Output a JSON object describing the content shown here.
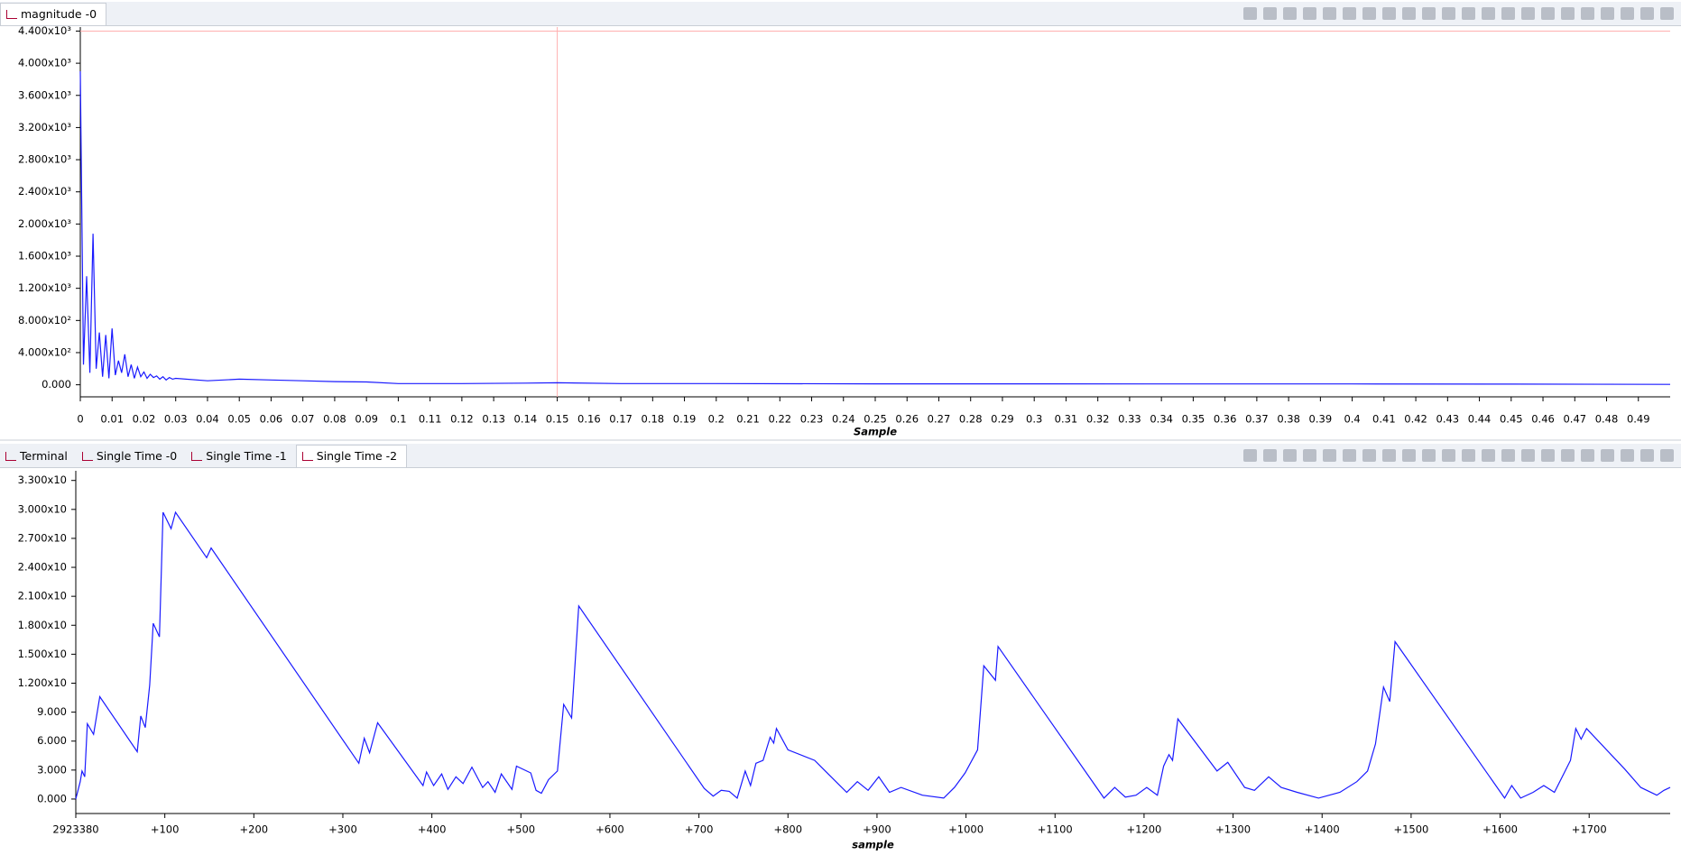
{
  "top_panel": {
    "tabs": [
      "magnitude -0"
    ]
  },
  "bottom_panel": {
    "tabs": [
      "Terminal",
      "Single Time -0",
      "Single Time -1",
      "Single Time -2"
    ]
  },
  "chart_data": [
    {
      "type": "line",
      "x_label": "Sample",
      "xlim": [
        0,
        0.5
      ],
      "ylim": [
        -150,
        4450
      ],
      "cursor_x": 0.15,
      "cursor_y": 4400,
      "xticks": [
        0,
        0.01,
        0.02,
        0.03,
        0.04,
        0.05,
        0.06,
        0.07,
        0.08,
        0.09,
        0.1,
        0.11,
        0.12,
        0.13,
        0.14,
        0.15,
        0.16,
        0.17,
        0.18,
        0.19,
        0.2,
        0.21,
        0.22,
        0.23,
        0.24,
        0.25,
        0.26,
        0.27,
        0.28,
        0.29,
        0.3,
        0.31,
        0.32,
        0.33,
        0.34,
        0.35,
        0.36,
        0.37,
        0.38,
        0.39,
        0.4,
        0.41,
        0.42,
        0.43,
        0.44,
        0.45,
        0.46,
        0.47,
        0.48,
        0.49
      ],
      "yticks": [
        {
          "value": 4400,
          "label": "4.400x10³"
        },
        {
          "value": 4000,
          "label": "4.000x10³"
        },
        {
          "value": 3600,
          "label": "3.600x10³"
        },
        {
          "value": 3200,
          "label": "3.200x10³"
        },
        {
          "value": 2800,
          "label": "2.800x10³"
        },
        {
          "value": 2400,
          "label": "2.400x10³"
        },
        {
          "value": 2000,
          "label": "2.000x10³"
        },
        {
          "value": 1600,
          "label": "1.600x10³"
        },
        {
          "value": 1200,
          "label": "1.200x10³"
        },
        {
          "value": 800,
          "label": "8.000x10²"
        },
        {
          "value": 400,
          "label": "4.000x10²"
        },
        {
          "value": 0,
          "label": "0.000"
        }
      ],
      "x": [
        0,
        0.001,
        0.002,
        0.003,
        0.004,
        0.005,
        0.006,
        0.007,
        0.008,
        0.009,
        0.01,
        0.011,
        0.012,
        0.013,
        0.014,
        0.015,
        0.016,
        0.017,
        0.018,
        0.019,
        0.02,
        0.021,
        0.022,
        0.023,
        0.024,
        0.025,
        0.026,
        0.027,
        0.028,
        0.029,
        0.03,
        0.04,
        0.05,
        0.06,
        0.07,
        0.08,
        0.09,
        0.1,
        0.12,
        0.14,
        0.15,
        0.17,
        0.2,
        0.25,
        0.3,
        0.35,
        0.4,
        0.45,
        0.5
      ],
      "series": [
        {
          "color": "#1a1aff",
          "values": [
            3900,
            250,
            1350,
            150,
            1880,
            200,
            650,
            100,
            620,
            80,
            700,
            120,
            300,
            150,
            380,
            100,
            250,
            80,
            220,
            100,
            160,
            80,
            130,
            90,
            110,
            70,
            100,
            60,
            90,
            70,
            80,
            50,
            70,
            60,
            50,
            40,
            35,
            15,
            15,
            20,
            25,
            15,
            15,
            12,
            12,
            10,
            10,
            8,
            5
          ]
        }
      ]
    },
    {
      "type": "line",
      "x_label": "sample",
      "xlim": [
        2923380,
        2925171
      ],
      "ylim": [
        -1.5,
        34
      ],
      "xticks": [
        2923380,
        {
          "value": 2923480,
          "label": "+100"
        },
        {
          "value": 2923580,
          "label": "+200"
        },
        {
          "value": 2923680,
          "label": "+300"
        },
        {
          "value": 2923780,
          "label": "+400"
        },
        {
          "value": 2923880,
          "label": "+500"
        },
        {
          "value": 2923980,
          "label": "+600"
        },
        {
          "value": 2924080,
          "label": "+700"
        },
        {
          "value": 2924180,
          "label": "+800"
        },
        {
          "value": 2924280,
          "label": "+900"
        },
        {
          "value": 2924380,
          "label": "+1000"
        },
        {
          "value": 2924480,
          "label": "+1100"
        },
        {
          "value": 2924580,
          "label": "+1200"
        },
        {
          "value": 2924680,
          "label": "+1300"
        },
        {
          "value": 2924780,
          "label": "+1400"
        },
        {
          "value": 2924880,
          "label": "+1500"
        },
        {
          "value": 2924980,
          "label": "+1600"
        },
        {
          "value": 2925080,
          "label": "+1700"
        }
      ],
      "yticks": [
        {
          "value": 33,
          "label": "3.300x10"
        },
        {
          "value": 30,
          "label": "3.000x10"
        },
        {
          "value": 27,
          "label": "2.700x10"
        },
        {
          "value": 24,
          "label": "2.400x10"
        },
        {
          "value": 21,
          "label": "2.100x10"
        },
        {
          "value": 18,
          "label": "1.800x10"
        },
        {
          "value": 15,
          "label": "1.500x10"
        },
        {
          "value": 12,
          "label": "1.200x10"
        },
        {
          "value": 9,
          "label": "9.000"
        },
        {
          "value": 6,
          "label": "6.000"
        },
        {
          "value": 3,
          "label": "3.000"
        },
        {
          "value": 0,
          "label": "0.000"
        }
      ],
      "x": [
        2923380,
        2923385,
        2923387,
        2923390,
        2923393,
        2923400,
        2923407,
        2923449,
        2923453,
        2923458,
        2923463,
        2923467,
        2923474,
        2923478,
        2923487,
        2923492,
        2923527,
        2923532,
        2923698,
        2923704,
        2923710,
        2923719,
        2923770,
        2923774,
        2923782,
        2923791,
        2923798,
        2923807,
        2923815,
        2923825,
        2923837,
        2923843,
        2923851,
        2923858,
        2923870,
        2923875,
        2923891,
        2923897,
        2923903,
        2923911,
        2923921,
        2923928,
        2923937,
        2923945,
        2924086,
        2924096,
        2924105,
        2924114,
        2924123,
        2924132,
        2924138,
        2924144,
        2924152,
        2924160,
        2924164,
        2924167,
        2924180,
        2924210,
        2924222,
        2924246,
        2924258,
        2924270,
        2924282,
        2924294,
        2924307,
        2924331,
        2924355,
        2924367,
        2924379,
        2924393,
        2924400,
        2924413,
        2924416,
        2924535,
        2924547,
        2924559,
        2924571,
        2924583,
        2924595,
        2924602,
        2924608,
        2924612,
        2924618,
        2924662,
        2924674,
        2924693,
        2924704,
        2924720,
        2924734,
        2924752,
        2924776,
        2924800,
        2924819,
        2924831,
        2924840,
        2924849,
        2924856,
        2924862,
        2924985,
        2924993,
        2925003,
        2925017,
        2925029,
        2925041,
        2925053,
        2925059,
        2925065,
        2925071,
        2925077,
        2925120,
        2925138,
        2925156,
        2925164,
        2925171
      ],
      "series": [
        {
          "color": "#1a1aff",
          "values": [
            0,
            1.8,
            2.9,
            2.3,
            7.8,
            6.7,
            10.6,
            4.9,
            8.6,
            7.4,
            11.8,
            18.2,
            16.8,
            29.7,
            28,
            29.7,
            25,
            26,
            3.7,
            6.3,
            4.8,
            7.9,
            1.4,
            2.8,
            1.4,
            2.6,
            1.0,
            2.3,
            1.6,
            3.3,
            1.2,
            1.8,
            0.7,
            2.6,
            1.0,
            3.4,
            2.7,
            0.9,
            0.6,
            2.0,
            2.9,
            9.8,
            8.4,
            20,
            1.1,
            0.3,
            0.9,
            0.8,
            0.1,
            2.9,
            1.4,
            3.7,
            4,
            6.4,
            5.8,
            7.3,
            5.1,
            4,
            2.9,
            0.7,
            1.8,
            0.9,
            2.3,
            0.7,
            1.2,
            0.4,
            0.1,
            1.2,
            2.7,
            5.1,
            13.8,
            12.3,
            15.8,
            0.1,
            1.2,
            0.2,
            0.4,
            1.2,
            0.4,
            3.4,
            4.6,
            4,
            8.3,
            2.9,
            3.8,
            1.2,
            0.9,
            2.3,
            1.2,
            0.7,
            0.1,
            0.7,
            1.8,
            2.9,
            5.7,
            11.6,
            10.1,
            16.3,
            0.1,
            1.4,
            0.1,
            0.7,
            1.4,
            0.7,
            2.9,
            4,
            7.3,
            6.2,
            7.3,
            3.1,
            1.2,
            0.4,
            0.9,
            1.2
          ]
        }
      ]
    }
  ]
}
